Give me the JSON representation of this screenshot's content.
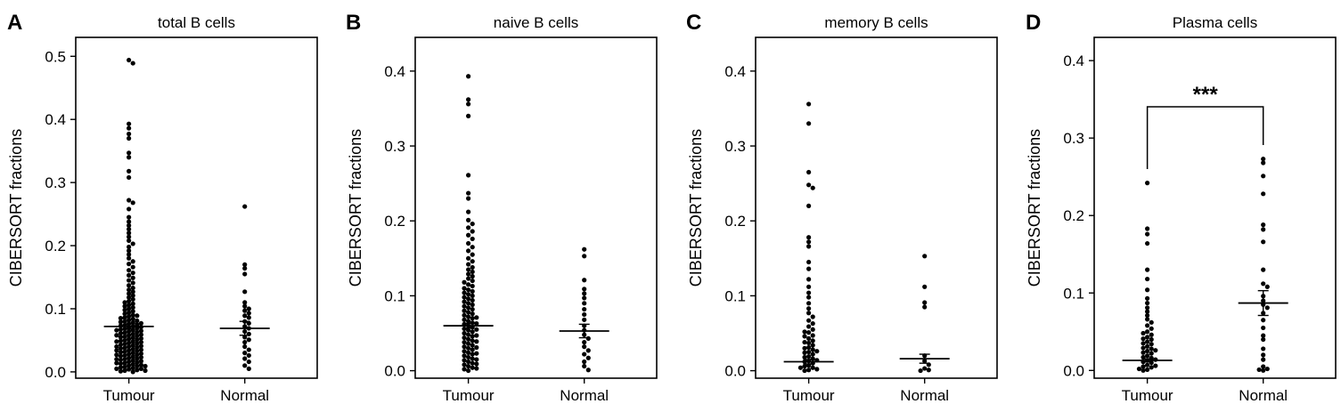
{
  "chart_data": [
    {
      "type": "scatter",
      "panel_letter": "A",
      "title": "total B cells",
      "xlabel": "",
      "ylabel": "CIBERSORT fractions",
      "categories": [
        "Tumour",
        "Normal"
      ],
      "ylim": [
        -0.01,
        0.53
      ],
      "yticks": [
        "0.0",
        "0.1",
        "0.2",
        "0.3",
        "0.4",
        "0.5"
      ],
      "ytick_values": [
        0.0,
        0.1,
        0.2,
        0.3,
        0.4,
        0.5
      ],
      "series": [
        {
          "category": "Tumour",
          "values": [
            0.494,
            0.489,
            0.393,
            0.386,
            0.377,
            0.37,
            0.347,
            0.34,
            0.318,
            0.308,
            0.272,
            0.268,
            0.258,
            0.245,
            0.238,
            0.232,
            0.226,
            0.22,
            0.214,
            0.208,
            0.203,
            0.198,
            0.192,
            0.186,
            0.18,
            0.175,
            0.171,
            0.166,
            0.161,
            0.157,
            0.153,
            0.149,
            0.145,
            0.141,
            0.137,
            0.133,
            0.13,
            0.127,
            0.124,
            0.121,
            0.118,
            0.115,
            0.112,
            0.11,
            0.108,
            0.106,
            0.104,
            0.102,
            0.1,
            0.098,
            0.096,
            0.094,
            0.092,
            0.09,
            0.089,
            0.088,
            0.086,
            0.085,
            0.084,
            0.082,
            0.081,
            0.08,
            0.079,
            0.078,
            0.077,
            0.076,
            0.075,
            0.074,
            0.073,
            0.072,
            0.071,
            0.07,
            0.069,
            0.068,
            0.067,
            0.066,
            0.065,
            0.064,
            0.063,
            0.062,
            0.061,
            0.06,
            0.059,
            0.058,
            0.057,
            0.056,
            0.055,
            0.054,
            0.053,
            0.052,
            0.051,
            0.05,
            0.049,
            0.048,
            0.047,
            0.046,
            0.045,
            0.044,
            0.043,
            0.042,
            0.041,
            0.04,
            0.039,
            0.038,
            0.037,
            0.036,
            0.035,
            0.034,
            0.033,
            0.032,
            0.031,
            0.03,
            0.029,
            0.028,
            0.027,
            0.026,
            0.025,
            0.024,
            0.023,
            0.022,
            0.021,
            0.02,
            0.019,
            0.018,
            0.017,
            0.016,
            0.015,
            0.014,
            0.013,
            0.012,
            0.011,
            0.01,
            0.009,
            0.008,
            0.007,
            0.006,
            0.005,
            0.004,
            0.003,
            0.002,
            0.001,
            0.0,
            0.066,
            0.058,
            0.048,
            0.04,
            0.034,
            0.027,
            0.02,
            0.014,
            0.009,
            0.005,
            0.002
          ],
          "mean": 0.072,
          "sem": 0.004
        },
        {
          "category": "Normal",
          "values": [
            0.262,
            0.17,
            0.164,
            0.155,
            0.127,
            0.11,
            0.104,
            0.1,
            0.097,
            0.093,
            0.089,
            0.086,
            0.08,
            0.077,
            0.072,
            0.069,
            0.064,
            0.06,
            0.055,
            0.051,
            0.047,
            0.04,
            0.035,
            0.03,
            0.026,
            0.021,
            0.016,
            0.01,
            0.005
          ],
          "mean": 0.069,
          "sem": 0.011
        }
      ]
    },
    {
      "type": "scatter",
      "panel_letter": "B",
      "title": "naive B cells",
      "xlabel": "",
      "ylabel": "CIBERSORT fractions",
      "categories": [
        "Tumour",
        "Normal"
      ],
      "ylim": [
        -0.01,
        0.445
      ],
      "yticks": [
        "0.0",
        "0.1",
        "0.2",
        "0.3",
        "0.4"
      ],
      "ytick_values": [
        0.0,
        0.1,
        0.2,
        0.3,
        0.4
      ],
      "series": [
        {
          "category": "Tumour",
          "values": [
            0.393,
            0.362,
            0.356,
            0.34,
            0.261,
            0.237,
            0.23,
            0.212,
            0.201,
            0.196,
            0.191,
            0.186,
            0.181,
            0.176,
            0.17,
            0.165,
            0.16,
            0.155,
            0.15,
            0.146,
            0.142,
            0.138,
            0.135,
            0.132,
            0.129,
            0.126,
            0.123,
            0.12,
            0.118,
            0.115,
            0.113,
            0.11,
            0.108,
            0.106,
            0.104,
            0.102,
            0.1,
            0.098,
            0.096,
            0.094,
            0.092,
            0.09,
            0.088,
            0.086,
            0.084,
            0.082,
            0.08,
            0.078,
            0.076,
            0.074,
            0.072,
            0.07,
            0.068,
            0.066,
            0.064,
            0.062,
            0.06,
            0.058,
            0.056,
            0.054,
            0.052,
            0.05,
            0.048,
            0.046,
            0.044,
            0.042,
            0.04,
            0.038,
            0.036,
            0.034,
            0.032,
            0.03,
            0.028,
            0.026,
            0.024,
            0.022,
            0.02,
            0.018,
            0.016,
            0.014,
            0.012,
            0.01,
            0.008,
            0.006,
            0.004,
            0.002,
            0.0,
            0.071,
            0.063,
            0.055,
            0.047,
            0.039,
            0.031,
            0.023,
            0.015,
            0.009,
            0.003
          ],
          "mean": 0.06,
          "sem": 0.003
        },
        {
          "category": "Normal",
          "values": [
            0.162,
            0.153,
            0.121,
            0.109,
            0.103,
            0.097,
            0.09,
            0.082,
            0.075,
            0.068,
            0.06,
            0.054,
            0.048,
            0.043,
            0.038,
            0.032,
            0.027,
            0.022,
            0.017,
            0.012,
            0.006,
            0.001
          ],
          "mean": 0.053,
          "sem": 0.009
        }
      ]
    },
    {
      "type": "scatter",
      "panel_letter": "C",
      "title": "memory B cells",
      "xlabel": "",
      "ylabel": "CIBERSORT fractions",
      "categories": [
        "Tumour",
        "Normal"
      ],
      "ylim": [
        -0.01,
        0.445
      ],
      "yticks": [
        "0.0",
        "0.1",
        "0.2",
        "0.3",
        "0.4"
      ],
      "ytick_values": [
        0.0,
        0.1,
        0.2,
        0.3,
        0.4
      ],
      "series": [
        {
          "category": "Tumour",
          "values": [
            0.356,
            0.33,
            0.265,
            0.248,
            0.244,
            0.22,
            0.178,
            0.172,
            0.166,
            0.145,
            0.136,
            0.122,
            0.112,
            0.104,
            0.098,
            0.09,
            0.083,
            0.077,
            0.072,
            0.067,
            0.063,
            0.059,
            0.055,
            0.051,
            0.047,
            0.043,
            0.04,
            0.037,
            0.034,
            0.031,
            0.028,
            0.025,
            0.022,
            0.019,
            0.016,
            0.013,
            0.01,
            0.007,
            0.004,
            0.001,
            0.052,
            0.046,
            0.038,
            0.03,
            0.024,
            0.018,
            0.012,
            0.006,
            0.002,
            0.0,
            0.026,
            0.014,
            0.004
          ],
          "mean": 0.012,
          "sem": 0.003
        },
        {
          "category": "Normal",
          "values": [
            0.153,
            0.112,
            0.091,
            0.085,
            0.02,
            0.013,
            0.008,
            0.003,
            0.001,
            0.0
          ],
          "mean": 0.016,
          "sem": 0.006
        }
      ]
    },
    {
      "type": "scatter",
      "panel_letter": "D",
      "title": "Plasma cells",
      "xlabel": "",
      "ylabel": "CIBERSORT fractions",
      "categories": [
        "Tumour",
        "Normal"
      ],
      "ylim": [
        -0.01,
        0.43
      ],
      "yticks": [
        "0.0",
        "0.1",
        "0.2",
        "0.3",
        "0.4"
      ],
      "ytick_values": [
        0.0,
        0.1,
        0.2,
        0.3,
        0.4
      ],
      "annotation": "***",
      "series": [
        {
          "category": "Tumour",
          "values": [
            0.242,
            0.183,
            0.176,
            0.164,
            0.13,
            0.118,
            0.104,
            0.093,
            0.087,
            0.081,
            0.076,
            0.071,
            0.066,
            0.062,
            0.058,
            0.054,
            0.05,
            0.046,
            0.043,
            0.04,
            0.037,
            0.034,
            0.031,
            0.028,
            0.025,
            0.022,
            0.019,
            0.016,
            0.013,
            0.01,
            0.007,
            0.004,
            0.001,
            0.048,
            0.041,
            0.035,
            0.029,
            0.023,
            0.017,
            0.011,
            0.005,
            0.0,
            0.026,
            0.014,
            0.006,
            0.002
          ],
          "mean": 0.013,
          "sem": 0.002
        },
        {
          "category": "Normal",
          "values": [
            0.273,
            0.268,
            0.251,
            0.228,
            0.188,
            0.182,
            0.166,
            0.13,
            0.112,
            0.108,
            0.096,
            0.09,
            0.085,
            0.081,
            0.074,
            0.065,
            0.055,
            0.045,
            0.04,
            0.028,
            0.02,
            0.014,
            0.005,
            0.002,
            0.001,
            0.0
          ],
          "mean": 0.087,
          "sem": 0.016
        }
      ]
    }
  ]
}
